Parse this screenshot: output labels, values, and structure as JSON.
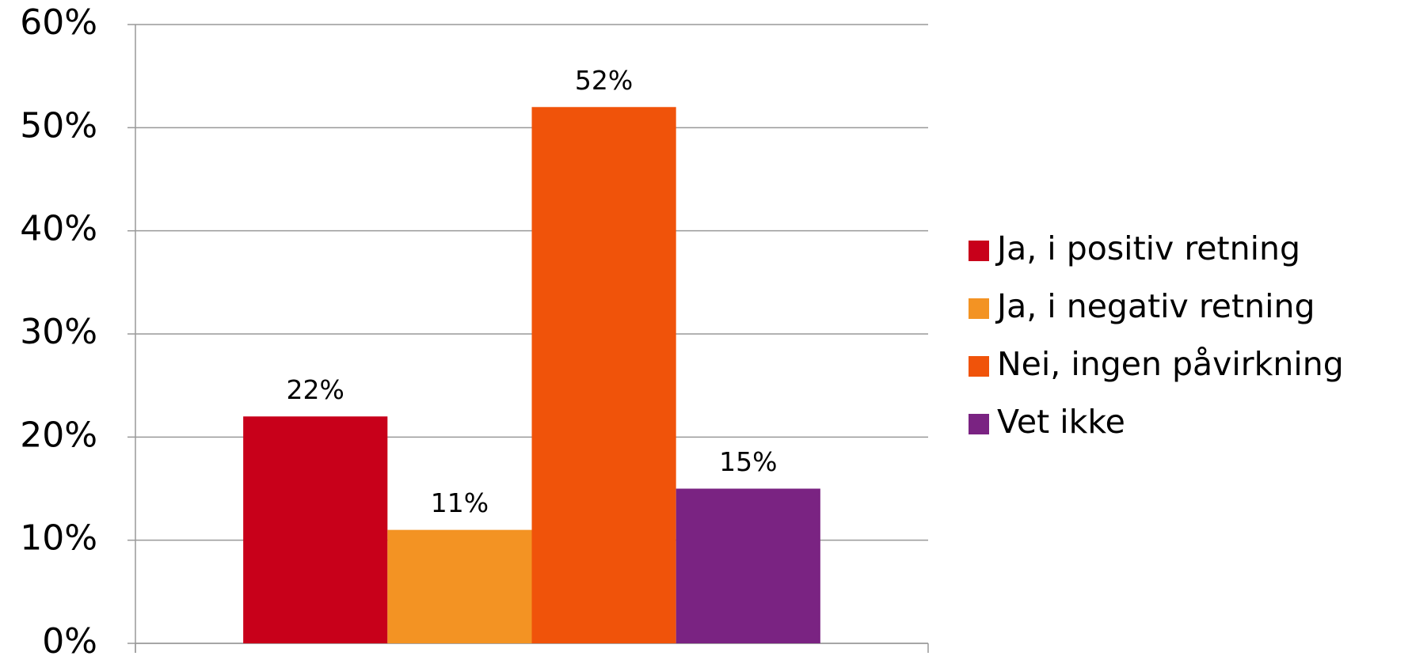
{
  "chart_data": {
    "type": "bar",
    "categories": [
      null
    ],
    "series": [
      {
        "name": "Ja, i positiv retning",
        "color": "#c8001a",
        "values": [
          22
        ],
        "value_labels": [
          "22%"
        ]
      },
      {
        "name": "Ja, i negativ retning",
        "color": "#f39323",
        "values": [
          11
        ],
        "value_labels": [
          "11%"
        ]
      },
      {
        "name": "Nei, ingen påvirkning",
        "color": "#f0530a",
        "values": [
          52
        ],
        "value_labels": [
          "52%"
        ]
      },
      {
        "name": "Vet ikke",
        "color": "#7a2382",
        "values": [
          15
        ],
        "value_labels": [
          "15%"
        ]
      }
    ],
    "ylim": [
      0,
      60
    ],
    "yticks": [
      {
        "value": 0,
        "label": "0%"
      },
      {
        "value": 10,
        "label": "10%"
      },
      {
        "value": 20,
        "label": "20%"
      },
      {
        "value": 30,
        "label": "30%"
      },
      {
        "value": 40,
        "label": "40%"
      },
      {
        "value": 50,
        "label": "50%"
      },
      {
        "value": 60,
        "label": "60%"
      }
    ],
    "grid": true,
    "legend": "right"
  }
}
